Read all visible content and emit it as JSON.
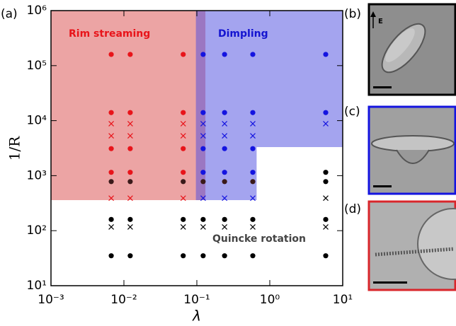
{
  "chart_data": {
    "type": "scatter",
    "x_label": "λ",
    "y_label": "1/R",
    "panel_labels": [
      "(a)",
      "(b)",
      "(c)",
      "(d)"
    ],
    "field_label": "E",
    "xscale": "log",
    "yscale": "log",
    "xlim": [
      0.001,
      10
    ],
    "ylim": [
      10,
      1000000
    ],
    "xticks": [
      {
        "value": 0.001,
        "label": "10⁻³"
      },
      {
        "value": 0.01,
        "label": "10⁻²"
      },
      {
        "value": 0.1,
        "label": "10⁻¹"
      },
      {
        "value": 1,
        "label": "10⁰"
      },
      {
        "value": 10,
        "label": "10¹"
      }
    ],
    "yticks": [
      {
        "value": 10,
        "label": "10¹"
      },
      {
        "value": 100,
        "label": "10²"
      },
      {
        "value": 1000,
        "label": "10³"
      },
      {
        "value": 10000,
        "label": "10⁴"
      },
      {
        "value": 100000,
        "label": "10⁵"
      },
      {
        "value": 1000000,
        "label": "10⁶"
      }
    ],
    "regions": [
      {
        "color": "#d94a4a",
        "x": [
          0.001,
          0.131,
          0.131,
          0.001
        ],
        "y": [
          359,
          359,
          1000000,
          1000000
        ]
      },
      {
        "color": "#4a4ae0",
        "x": [
          0.097,
          10,
          10,
          0.66,
          0.66,
          0.097
        ],
        "y": [
          1000000,
          1000000,
          3300,
          3300,
          359,
          359
        ]
      }
    ],
    "annotations": [
      {
        "text": "Rim streaming",
        "color": "#e8141a"
      },
      {
        "text": "Dimpling",
        "color": "#1414d0"
      },
      {
        "text": "Quincke rotation",
        "color": "#444444"
      }
    ],
    "series": [
      {
        "color": "#e8141a",
        "marker": "dot",
        "x": [
          0.0067,
          0.0122,
          0.065,
          0.0067,
          0.0122,
          0.065,
          0.0067,
          0.0122,
          0.065,
          0.0067,
          0.0122,
          0.065
        ],
        "values": [
          160000,
          160000,
          160000,
          14000,
          14000,
          14000,
          3100,
          3100,
          3100,
          1150,
          1150,
          1150
        ]
      },
      {
        "color": "#e8141a",
        "marker": "cross",
        "x": [
          0.0067,
          0.0122,
          0.065,
          0.0067,
          0.0122,
          0.065,
          0.0067,
          0.0122,
          0.065
        ],
        "values": [
          8800,
          8800,
          8800,
          5300,
          5300,
          5300,
          390,
          390,
          390
        ]
      },
      {
        "color": "#3a1a1a",
        "marker": "dot",
        "x": [
          0.0067,
          0.0122,
          0.065,
          0.122,
          0.24,
          0.585
        ],
        "values": [
          780,
          780,
          780,
          780,
          780,
          780
        ]
      },
      {
        "color": "#1414e0",
        "marker": "dot",
        "x": [
          0.122,
          0.24,
          0.585,
          0.122,
          0.24,
          0.585,
          0.122,
          0.24,
          0.585,
          0.122,
          0.24,
          0.585,
          5.85,
          5.85
        ],
        "values": [
          160000,
          160000,
          160000,
          14000,
          14000,
          14000,
          3100,
          3100,
          3100,
          1150,
          1150,
          1150,
          160000,
          14000
        ]
      },
      {
        "color": "#1414e0",
        "marker": "cross",
        "x": [
          0.122,
          0.24,
          0.585,
          0.122,
          0.24,
          0.585,
          0.122,
          0.24,
          0.585,
          5.85
        ],
        "values": [
          8800,
          8800,
          8800,
          5300,
          5300,
          5300,
          390,
          390,
          390,
          8800
        ]
      },
      {
        "color": "#000000",
        "marker": "dot",
        "x": [
          0.0067,
          0.0122,
          0.065,
          0.122,
          0.24,
          0.585,
          5.85,
          0.0067,
          0.0122,
          0.065,
          0.122,
          0.24,
          0.585,
          5.85,
          5.85,
          5.85
        ],
        "values": [
          160,
          160,
          160,
          160,
          160,
          160,
          160,
          35,
          35,
          35,
          35,
          35,
          35,
          35,
          1150,
          780
        ]
      },
      {
        "color": "#000000",
        "marker": "cross",
        "x": [
          0.0067,
          0.0122,
          0.065,
          0.122,
          0.24,
          0.585,
          5.85,
          5.85
        ],
        "values": [
          117,
          117,
          117,
          117,
          117,
          117,
          117,
          390
        ]
      }
    ]
  }
}
